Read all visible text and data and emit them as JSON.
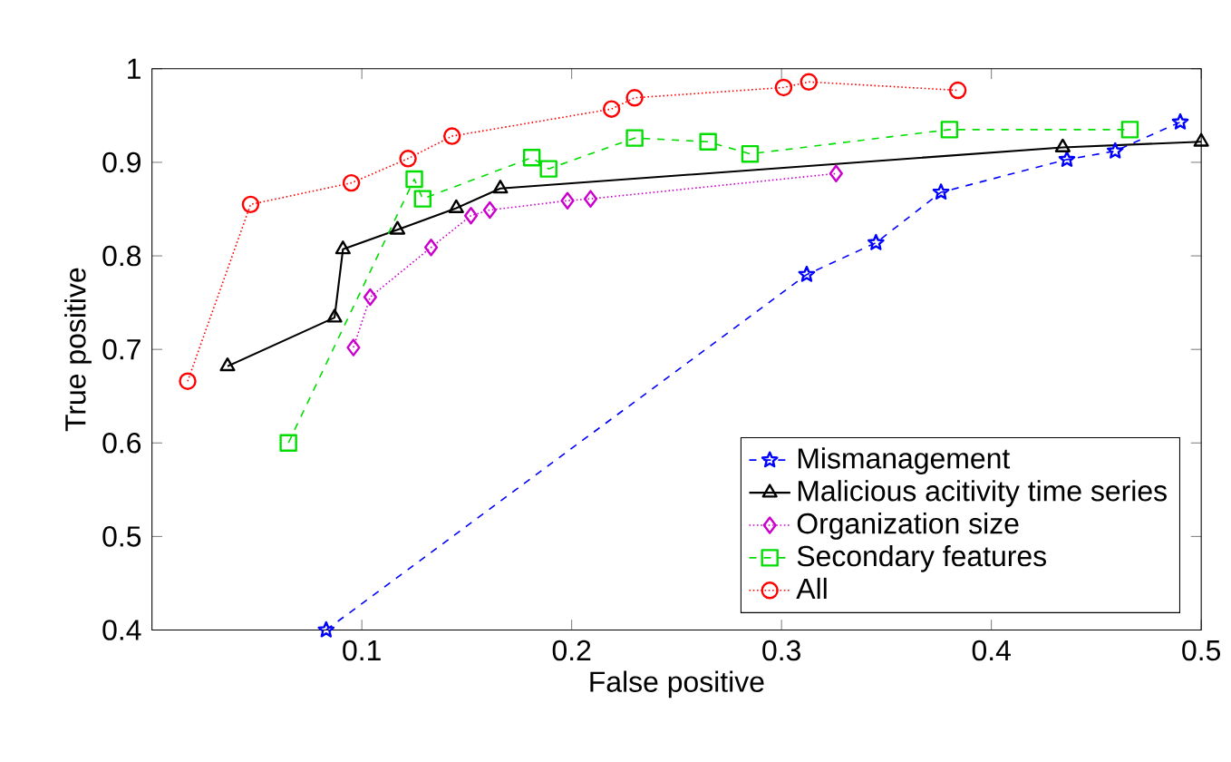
{
  "chart_data": {
    "type": "line",
    "xlabel": "False positive",
    "ylabel": "True positive",
    "xlim": [
      0,
      0.5
    ],
    "ylim": [
      0.4,
      1
    ],
    "xticks": [
      0.1,
      0.2,
      0.3,
      0.4,
      0.5
    ],
    "yticks": [
      0.4,
      0.5,
      0.6,
      0.7,
      0.8,
      0.9,
      1
    ],
    "legend": "bottom right",
    "grid": false,
    "series": [
      {
        "name": "Mismanagement",
        "color": "#0000ff",
        "marker": "star",
        "line_style": "dashed",
        "x": [
          0.083,
          0.312,
          0.345,
          0.376,
          0.436,
          0.459,
          0.49
        ],
        "values": [
          0.4,
          0.78,
          0.814,
          0.868,
          0.903,
          0.912,
          0.943
        ]
      },
      {
        "name": "Malicious acitivity time series",
        "color": "#000000",
        "marker": "triangle",
        "line_style": "solid",
        "x": [
          0.036,
          0.087,
          0.091,
          0.117,
          0.145,
          0.166,
          0.434,
          0.5
        ],
        "values": [
          0.682,
          0.734,
          0.807,
          0.828,
          0.851,
          0.872,
          0.916,
          0.922
        ]
      },
      {
        "name": "Organization size",
        "color": "#cc00cc",
        "marker": "diamond",
        "line_style": "dotted",
        "x": [
          0.096,
          0.104,
          0.133,
          0.152,
          0.161,
          0.198,
          0.209,
          0.326
        ],
        "values": [
          0.702,
          0.756,
          0.809,
          0.843,
          0.849,
          0.859,
          0.861,
          0.888
        ]
      },
      {
        "name": "Secondary features",
        "color": "#00dd00",
        "marker": "square",
        "line_style": "dashed",
        "x": [
          0.065,
          0.125,
          0.129,
          0.181,
          0.189,
          0.23,
          0.265,
          0.285,
          0.38,
          0.466
        ],
        "values": [
          0.6,
          0.882,
          0.861,
          0.905,
          0.893,
          0.926,
          0.922,
          0.909,
          0.935,
          0.935
        ]
      },
      {
        "name": "All",
        "color": "#ff0000",
        "marker": "circle",
        "line_style": "dotted",
        "x": [
          0.017,
          0.047,
          0.095,
          0.122,
          0.143,
          0.219,
          0.23,
          0.301,
          0.313,
          0.384
        ],
        "values": [
          0.666,
          0.855,
          0.878,
          0.904,
          0.928,
          0.957,
          0.969,
          0.98,
          0.986,
          0.977
        ]
      }
    ]
  }
}
